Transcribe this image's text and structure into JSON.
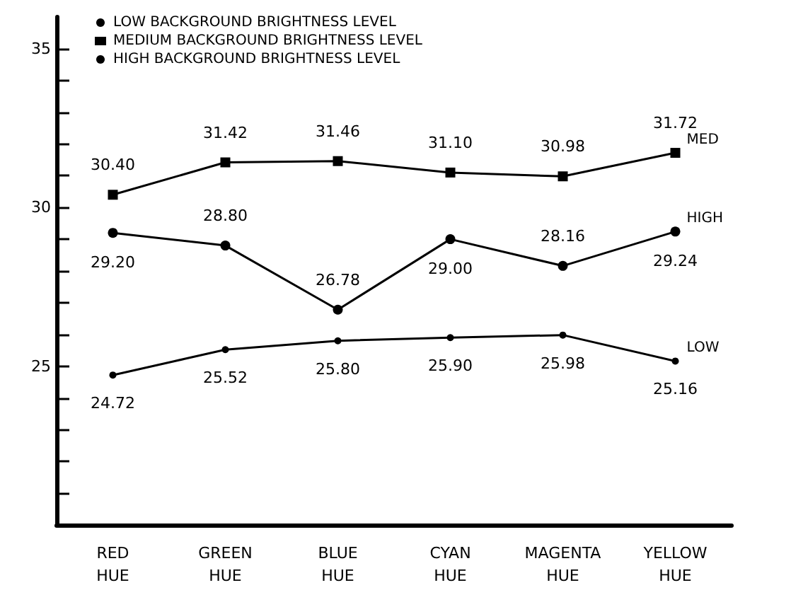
{
  "chart_data": {
    "type": "line",
    "categories": [
      "RED\nHUE",
      "GREEN\nHUE",
      "BLUE\nHUE",
      "CYAN\nHUE",
      "MAGENTA\nHUE",
      "YELLOW\nHUE"
    ],
    "series": [
      {
        "name": "LOW BACKGROUND BRIGHTNESS LEVEL",
        "color": "#000000",
        "marker": "circle",
        "values": [
          24.72,
          25.52,
          25.8,
          25.9,
          25.98,
          25.16
        ],
        "value_labels": [
          "24.72",
          "25.52",
          "25.80",
          "25.90",
          "25.98",
          "25.16"
        ]
      },
      {
        "name": "MEDIUM BACKGROUND BRIGHTNESS LEVEL",
        "color": "#000000",
        "marker": "square",
        "values": [
          30.4,
          31.42,
          31.46,
          31.1,
          30.98,
          31.72
        ],
        "value_labels": [
          "30.40",
          "31.42",
          "31.46",
          "31.10",
          "30.98",
          "31.72"
        ]
      },
      {
        "name": "HIGH BACKGROUND BRIGHTNESS LEVEL",
        "color": "#000000",
        "marker": "circle",
        "values": [
          29.2,
          28.8,
          26.78,
          29.0,
          28.16,
          29.24
        ],
        "value_labels": [
          "29.20",
          "28.80",
          "26.78",
          "29.00",
          "28.16",
          "29.24"
        ]
      }
    ],
    "annotations": [
      {
        "text": "LOW",
        "x": "YELLOW\nHUE",
        "y": 25.16
      },
      {
        "text": "MED",
        "x": "YELLOW\nHUE",
        "y": 31.72
      },
      {
        "text": "HIGH",
        "x": "YELLOW\nHUE",
        "y": 29.24
      }
    ],
    "ylim": [
      20,
      36
    ],
    "yticks": [
      {
        "value": 21,
        "label": null
      },
      {
        "value": 22,
        "label": null
      },
      {
        "value": 23,
        "label": null
      },
      {
        "value": 24,
        "label": null
      },
      25,
      {
        "value": 26,
        "label": null
      },
      {
        "value": 27,
        "label": null
      },
      {
        "value": 28,
        "label": null
      },
      {
        "value": 29,
        "label": null
      },
      30,
      {
        "value": 31,
        "label": null
      },
      {
        "value": 32,
        "label": null
      },
      {
        "value": 33,
        "label": null
      },
      {
        "value": 34,
        "label": null
      },
      35
    ],
    "grid": false,
    "legend": "top left",
    "line_style": "solid"
  }
}
